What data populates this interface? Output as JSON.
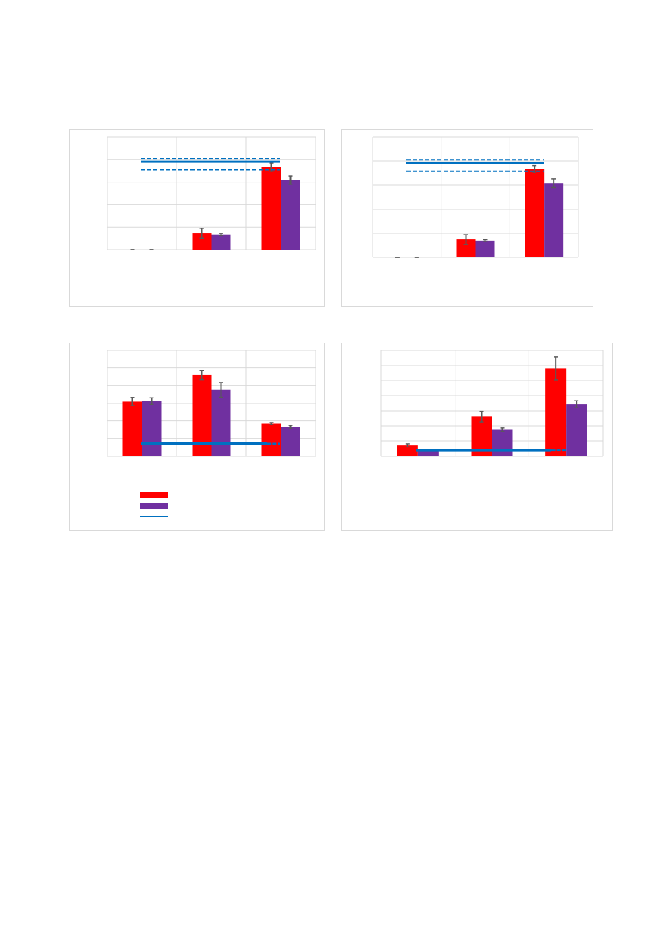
{
  "colors": {
    "series_a": "#ff0000",
    "series_b": "#7030a0",
    "reference": "#0070c0",
    "error_bar": "#595959",
    "grid": "#d9d9d9"
  },
  "legend": {
    "placement": "bottom-left",
    "entries": [
      {
        "name": "",
        "color": "#ff0000",
        "kind": "bar"
      },
      {
        "name": "",
        "color": "#7030a0",
        "kind": "bar"
      },
      {
        "name": "",
        "color": "#0070c0",
        "kind": "line"
      }
    ]
  },
  "chart_data": [
    {
      "type": "bar",
      "categories": [
        "",
        "",
        ""
      ],
      "ylim": [
        0,
        5
      ],
      "grid": true,
      "series": [
        {
          "color": "#ff0000",
          "values": [
            0.0,
            0.73,
            3.66
          ],
          "errors": [
            0.0,
            0.22,
            0.18
          ]
        },
        {
          "color": "#7030a0",
          "values": [
            0.0,
            0.68,
            3.08
          ],
          "errors": [
            0.0,
            0.05,
            0.18
          ]
        }
      ],
      "reference": {
        "value": 3.9,
        "band": [
          3.55,
          4.05
        ],
        "style": "solid line with dashed band"
      }
    },
    {
      "type": "bar",
      "categories": [
        "",
        "",
        ""
      ],
      "ylim": [
        0,
        5
      ],
      "grid": true,
      "series": [
        {
          "color": "#ff0000",
          "values": [
            0.0,
            0.74,
            3.66
          ],
          "errors": [
            0.0,
            0.2,
            0.15
          ]
        },
        {
          "color": "#7030a0",
          "values": [
            0.0,
            0.69,
            3.08
          ],
          "errors": [
            0.0,
            0.04,
            0.18
          ]
        }
      ],
      "reference": {
        "value": 3.9,
        "band": [
          3.58,
          4.05
        ],
        "style": "solid line with dashed band"
      }
    },
    {
      "type": "bar",
      "categories": [
        "",
        "",
        ""
      ],
      "ylim": [
        0,
        6
      ],
      "grid": true,
      "series": [
        {
          "color": "#ff0000",
          "values": [
            3.1,
            4.6,
            1.85
          ],
          "errors": [
            0.22,
            0.26,
            0.06
          ]
        },
        {
          "color": "#7030a0",
          "values": [
            3.12,
            3.75,
            1.65
          ],
          "errors": [
            0.18,
            0.42,
            0.1
          ]
        }
      ],
      "reference": {
        "value": 0.7,
        "style": "line, solid then dashed"
      }
    },
    {
      "type": "bar",
      "categories": [
        "",
        "",
        ""
      ],
      "ylim": [
        0,
        7
      ],
      "grid": true,
      "series": [
        {
          "color": "#ff0000",
          "values": [
            0.72,
            2.62,
            5.8
          ],
          "errors": [
            0.1,
            0.35,
            0.75
          ]
        },
        {
          "color": "#7030a0",
          "values": [
            0.38,
            1.75,
            3.45
          ],
          "errors": [
            0.05,
            0.12,
            0.22
          ]
        }
      ],
      "reference": {
        "value": 0.38,
        "style": "line, solid then dashed"
      }
    }
  ]
}
